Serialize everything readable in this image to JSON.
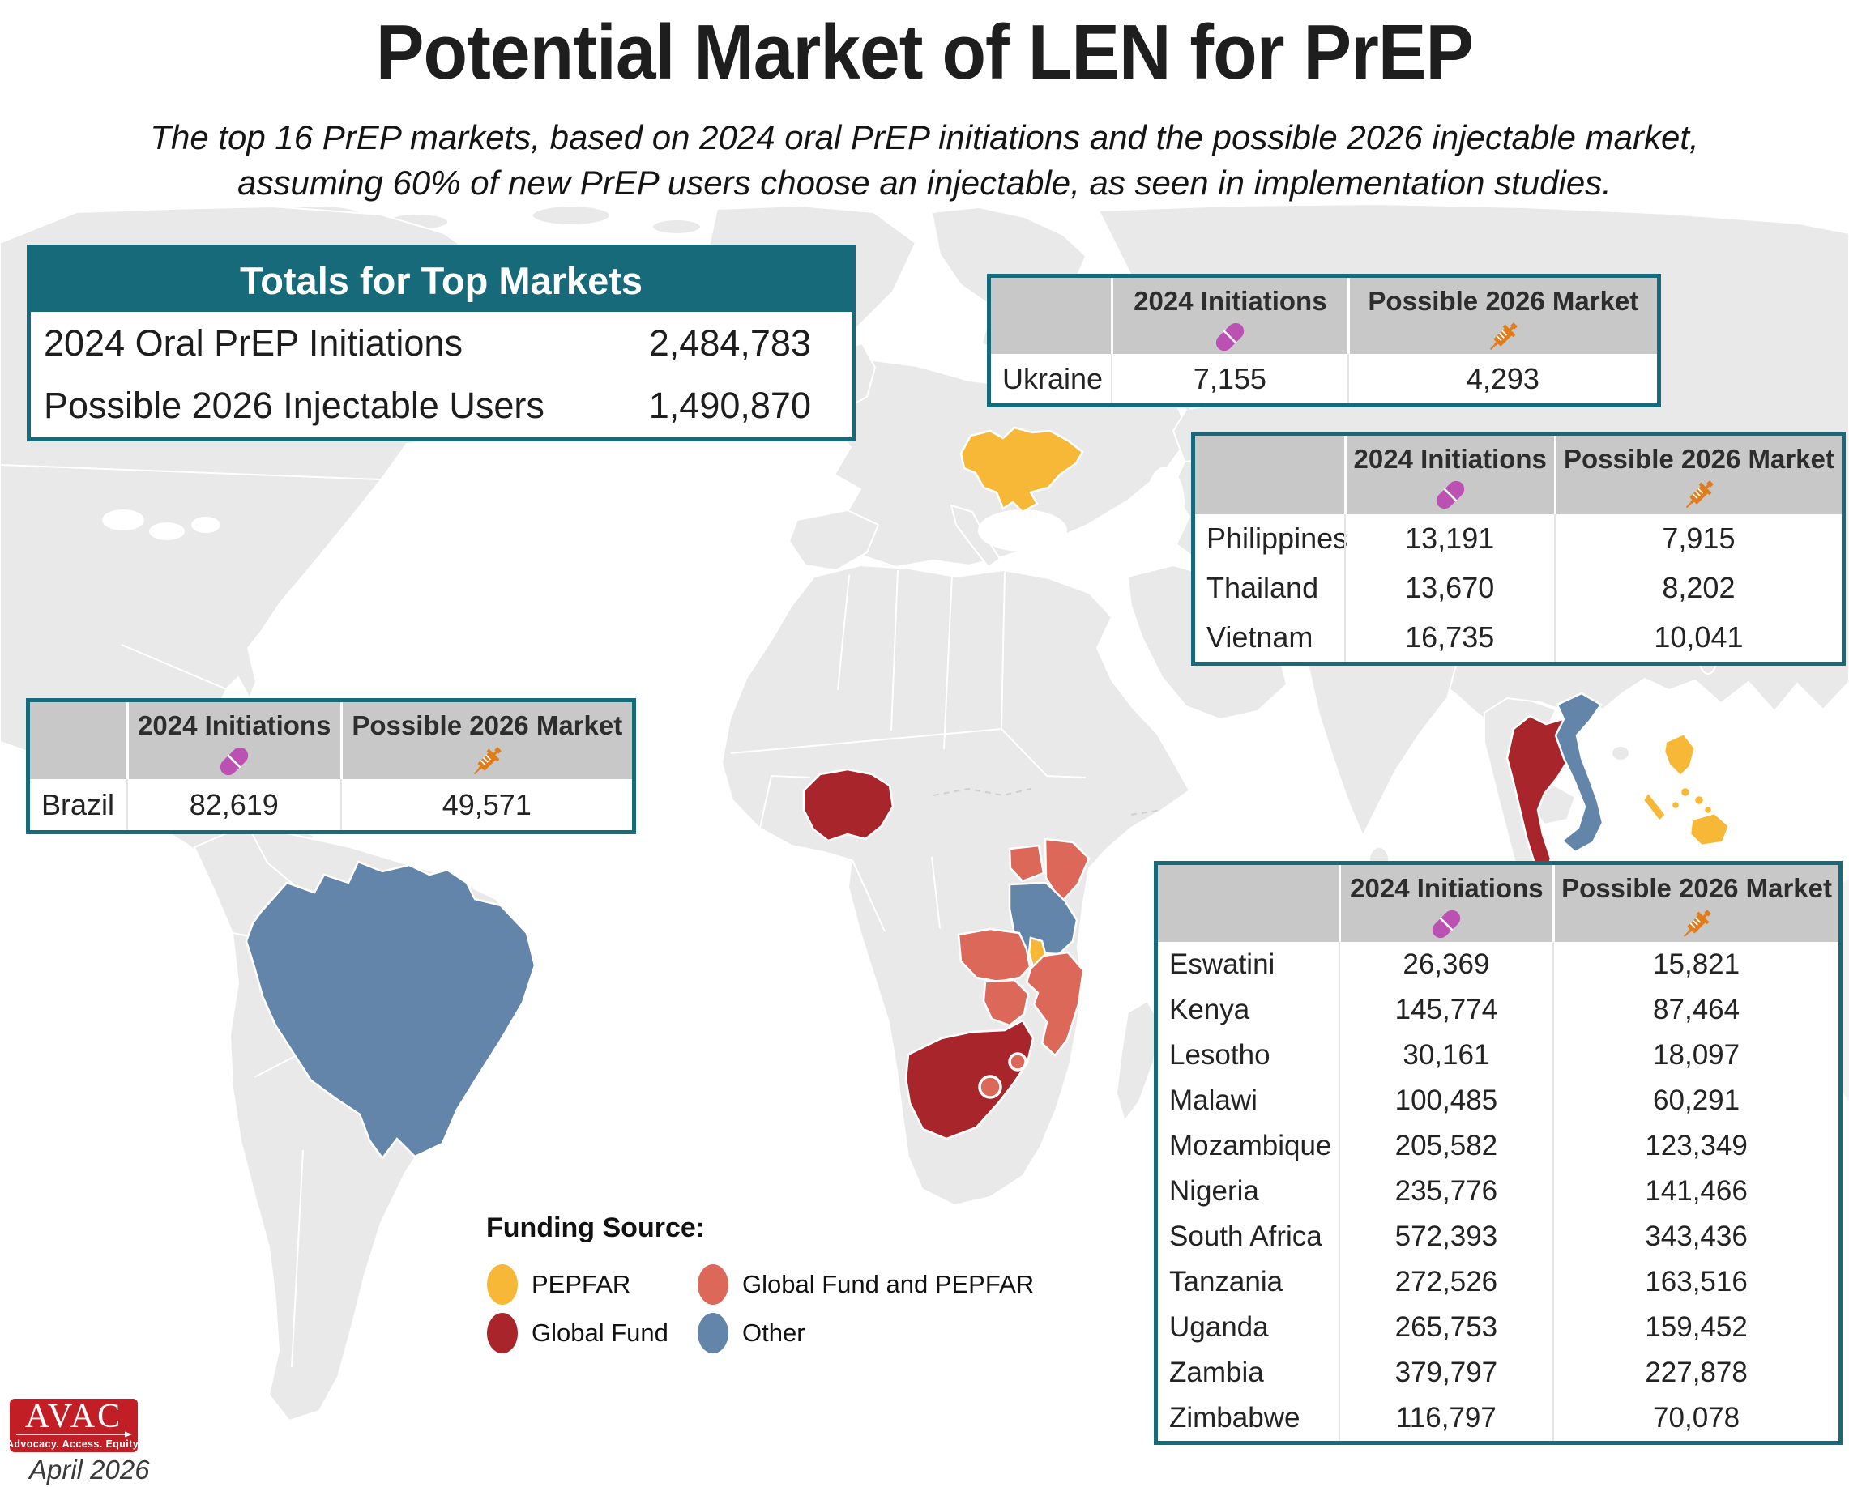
{
  "title": "Potential Market of LEN for PrEP",
  "subtitle_line1": "The top 16 PrEP markets, based on 2024 oral PrEP initiations and the possible 2026 injectable market,",
  "subtitle_line2": "assuming 60% of new PrEP users choose an injectable, as seen in implementation studies.",
  "totals": {
    "header": "Totals for Top Markets",
    "rows": [
      {
        "label": "2024 Oral PrEP Initiations",
        "value": "2,484,783"
      },
      {
        "label": "Possible 2026 Injectable Users",
        "value": "1,490,870"
      }
    ]
  },
  "column_headers": {
    "initiations": "2024 Initiations",
    "market": "Possible 2026 Market"
  },
  "tables": {
    "ukraine": {
      "rows": [
        {
          "country": "Ukraine",
          "initiations": "7,155",
          "market": "4,293"
        }
      ]
    },
    "asia": {
      "rows": [
        {
          "country": "Philippines",
          "initiations": "13,191",
          "market": "7,915"
        },
        {
          "country": "Thailand",
          "initiations": "13,670",
          "market": "8,202"
        },
        {
          "country": "Vietnam",
          "initiations": "16,735",
          "market": "10,041"
        }
      ]
    },
    "brazil": {
      "rows": [
        {
          "country": "Brazil",
          "initiations": "82,619",
          "market": "49,571"
        }
      ]
    },
    "africa": {
      "rows": [
        {
          "country": "Eswatini",
          "initiations": "26,369",
          "market": "15,821"
        },
        {
          "country": "Kenya",
          "initiations": "145,774",
          "market": "87,464"
        },
        {
          "country": "Lesotho",
          "initiations": "30,161",
          "market": "18,097"
        },
        {
          "country": "Malawi",
          "initiations": "100,485",
          "market": "60,291"
        },
        {
          "country": "Mozambique",
          "initiations": "205,582",
          "market": "123,349"
        },
        {
          "country": "Nigeria",
          "initiations": "235,776",
          "market": "141,466"
        },
        {
          "country": "South Africa",
          "initiations": "572,393",
          "market": "343,436"
        },
        {
          "country": "Tanzania",
          "initiations": "272,526",
          "market": "163,516"
        },
        {
          "country": "Uganda",
          "initiations": "265,753",
          "market": "159,452"
        },
        {
          "country": "Zambia",
          "initiations": "379,797",
          "market": "227,878"
        },
        {
          "country": "Zimbabwe",
          "initiations": "116,797",
          "market": "70,078"
        }
      ]
    }
  },
  "legend": {
    "title": "Funding Source:",
    "items": [
      {
        "label": "PEPFAR",
        "color": "#F7B737"
      },
      {
        "label": "Global Fund",
        "color": "#A8262B"
      },
      {
        "label": "Global Fund and PEPFAR",
        "color": "#DC685A"
      },
      {
        "label": "Other",
        "color": "#6385AA"
      }
    ]
  },
  "map": {
    "highlighted_countries": {
      "Ukraine": "PEPFAR",
      "Philippines": "PEPFAR",
      "Malawi": "PEPFAR",
      "Brazil": "Other",
      "Vietnam": "Other",
      "Tanzania": "Other",
      "Nigeria": "Global Fund",
      "South Africa": "Global Fund",
      "Thailand": "Global Fund",
      "Kenya": "Global Fund and PEPFAR",
      "Uganda": "Global Fund and PEPFAR",
      "Zambia": "Global Fund and PEPFAR",
      "Zimbabwe": "Global Fund and PEPFAR",
      "Mozambique": "Global Fund and PEPFAR",
      "Eswatini": "Global Fund and PEPFAR",
      "Lesotho": "Global Fund and PEPFAR"
    }
  },
  "logo": {
    "name": "AVAC",
    "tagline": "Advocacy. Access. Equity."
  },
  "date": "April 2026",
  "colors": {
    "teal": "#166A7A",
    "pepfar": "#F7B737",
    "global_fund": "#A8262B",
    "global_fund_pepfar": "#DC685A",
    "other": "#6385AA",
    "pill": "#BB51B2",
    "syringe": "#E07C1A",
    "header_gray": "#C8C8C8",
    "land": "#E9E9EA",
    "avac_red": "#C21E25"
  }
}
